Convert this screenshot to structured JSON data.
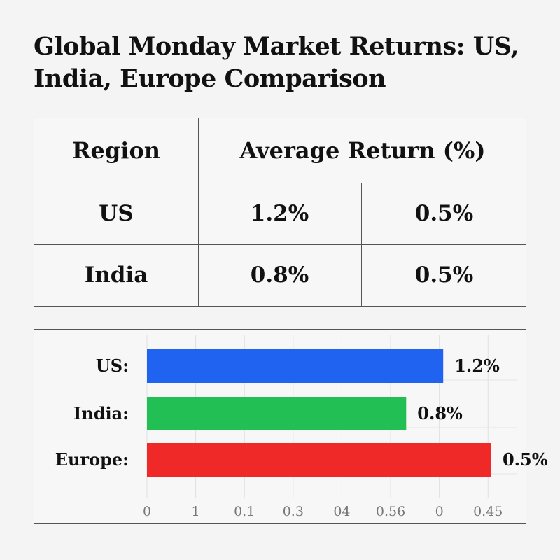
{
  "title": "Global Monday Market Returns: US, India, Europe Comparison",
  "table": {
    "header": {
      "col1": "Region",
      "col2": "Average Return (%)"
    },
    "rows": [
      {
        "region": "US",
        "value_a": "1.2%",
        "value_b": "0.5%"
      },
      {
        "region": "India",
        "value_a": "0.8%",
        "value_b": "0.5%"
      }
    ]
  },
  "chart_data": {
    "type": "bar",
    "orientation": "horizontal",
    "categories": [
      "US:",
      "India:",
      "Europe:"
    ],
    "values": [
      1.2,
      0.8,
      0.5
    ],
    "value_labels": [
      "1.2%",
      "0.8%",
      "0.5%"
    ],
    "colors": [
      "#1f63f0",
      "#22bf55",
      "#ef2828"
    ],
    "bar_extent_fraction": [
      0.8,
      0.7,
      0.93
    ],
    "x_tick_labels": [
      "0",
      "1",
      "0.1",
      "0.3",
      "04",
      "0.56",
      "0",
      "0.45"
    ],
    "grid": true,
    "title": "",
    "xlabel": "",
    "ylabel": ""
  }
}
